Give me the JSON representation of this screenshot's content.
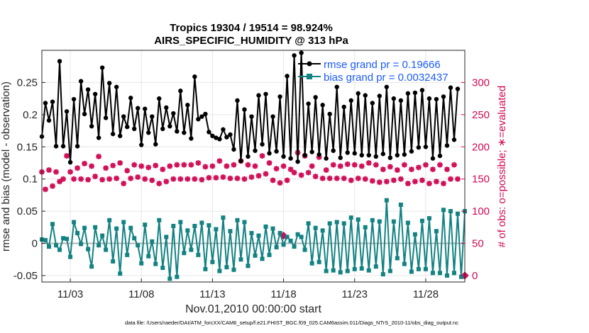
{
  "chart_data": {
    "type": "line",
    "title_line1": "Tropics 19304 / 19514 = 98.924%",
    "title_line2": "AIRS_SPECIFIC_HUMIDITY @ 313 hPa",
    "xlabel": "Nov.01,2010 00:00:00 start",
    "ylabel_left": "rmse and bias (model - observation)",
    "ylabel_right": "# of obs: o=possible; ∗=evaluated",
    "footer": "data file: /Users/raeder/DAI/ATM_forcXX/CAM6_setup/f.e21.FHIST_BGC.f09_025.CAM6assim.011/Diags_NTrS_2010-11/obs_diag_output.nc",
    "x_tick_labels": [
      "11/03",
      "11/08",
      "11/13",
      "11/18",
      "11/23",
      "11/28"
    ],
    "x_tick_values": [
      3,
      8,
      13,
      18,
      23,
      28
    ],
    "xlim": [
      1,
      30.75
    ],
    "left_ylim": [
      -0.06,
      0.3
    ],
    "left_ticks": [
      "-0.05",
      "0",
      "0.05",
      "0.1",
      "0.15",
      "0.2",
      "0.25"
    ],
    "left_tick_values": [
      -0.05,
      0,
      0.05,
      0.1,
      0.15,
      0.2,
      0.25
    ],
    "right_ylim": [
      -10,
      350
    ],
    "right_ticks": [
      "0",
      "50",
      "100",
      "150",
      "200",
      "250",
      "300"
    ],
    "right_tick_values": [
      0,
      50,
      100,
      150,
      200,
      250,
      300
    ],
    "colors": {
      "rmse": "#000000",
      "bias": "#138282",
      "obs": "#d10a55",
      "legend_text": "#1a5cff",
      "zero_line": "#b3b3b3"
    },
    "series": [
      {
        "name": "rmse grand pr = 0.19666",
        "axis": "left",
        "values": [
          0.166,
          0.218,
          0.191,
          0.22,
          0.151,
          0.283,
          0.151,
          0.205,
          0.126,
          0.224,
          0.151,
          0.252,
          0.201,
          0.239,
          0.182,
          0.232,
          0.164,
          0.273,
          0.195,
          0.249,
          0.17,
          0.243,
          0.167,
          0.197,
          0.181,
          0.226,
          0.178,
          0.21,
          0.153,
          0.209,
          0.172,
          0.197,
          0.154,
          0.225,
          0.178,
          0.211,
          0.182,
          0.202,
          0.174,
          0.237,
          0.172,
          0.215,
          0.163,
          0.259,
          0.193,
          0.197,
          0.201,
          0.173,
          0.167,
          0.164,
          0.162,
          0.177,
          0.165,
          0.169,
          0.146,
          0.222,
          0.128,
          0.208,
          0.135,
          0.197,
          0.144,
          0.23,
          0.154,
          0.232,
          0.14,
          0.197,
          0.143,
          0.228,
          0.135,
          0.26,
          0.132,
          0.292,
          0.127,
          0.296,
          0.137,
          0.217,
          0.142,
          0.227,
          0.138,
          0.215,
          0.132,
          0.201,
          0.144,
          0.243,
          0.133,
          0.212,
          0.141,
          0.222,
          0.14,
          0.233,
          0.137,
          0.23,
          0.137,
          0.218,
          0.135,
          0.229,
          0.139,
          0.243,
          0.133,
          0.225,
          0.137,
          0.222,
          0.138,
          0.233,
          0.143,
          0.234,
          0.149,
          0.238,
          0.15,
          0.225,
          0.132,
          0.224,
          0.136,
          0.228,
          0.152,
          0.242,
          0.161,
          0.24
        ]
      },
      {
        "name": "bias grand pr = 0.0032437",
        "axis": "left",
        "values": [
          0.006,
          0.005,
          -0.005,
          0.03,
          -0.003,
          -0.01,
          0.008,
          0.007,
          -0.021,
          0.033,
          0.016,
          -0.001,
          0.024,
          -0.009,
          -0.036,
          0.025,
          -0.003,
          0.012,
          -0.01,
          0.036,
          -0.028,
          0.023,
          -0.047,
          0.033,
          -0.018,
          0.024,
          0.008,
          -0.003,
          -0.031,
          0.029,
          -0.02,
          0.003,
          -0.032,
          0.036,
          -0.038,
          0.01,
          -0.055,
          0.027,
          -0.052,
          0.033,
          -0.015,
          0.02,
          -0.01,
          0.027,
          -0.018,
          0.032,
          -0.04,
          0.028,
          -0.029,
          0.022,
          -0.043,
          0.04,
          -0.037,
          0.019,
          -0.041,
          0.036,
          -0.025,
          0.033,
          -0.035,
          0.016,
          -0.019,
          0.012,
          -0.024,
          0.026,
          -0.018,
          0.023,
          -0.006,
          0.016,
          -0.002,
          0.01,
          0.004,
          -0.005,
          0.014,
          0.01,
          -0.01,
          0.031,
          -0.031,
          0.024,
          -0.029,
          0.02,
          -0.043,
          0.031,
          -0.042,
          0.033,
          -0.045,
          0.031,
          -0.043,
          0.04,
          -0.04,
          0.037,
          -0.039,
          0.025,
          -0.042,
          0.036,
          -0.036,
          0.034,
          -0.048,
          0.067,
          -0.043,
          0.034,
          -0.023,
          0.06,
          -0.032,
          0.032,
          -0.044,
          0.014,
          -0.04,
          0.035,
          -0.04,
          0.039,
          -0.046,
          0.019,
          -0.046,
          0.052,
          -0.05,
          0.05,
          -0.046,
          0.046,
          -0.052,
          0.05
        ]
      },
      {
        "name": "obs possible",
        "axis": "right",
        "values": [
          161,
          134,
          164,
          139,
          161,
          146,
          150,
          186,
          161,
          150,
          167,
          150,
          174,
          149,
          170,
          154,
          185,
          149,
          167,
          150,
          171,
          151,
          175,
          143,
          163,
          151,
          172,
          153,
          170,
          150,
          168,
          148,
          171,
          143,
          165,
          146,
          170,
          150,
          172,
          150,
          172,
          150,
          172,
          150,
          175,
          149,
          169,
          152,
          170,
          152,
          178,
          153,
          170,
          151,
          172,
          151,
          178,
          150,
          172,
          153,
          170,
          155,
          186,
          158,
          175,
          148,
          166,
          144,
          170,
          148,
          165,
          160,
          191,
          156,
          186,
          160,
          170,
          154,
          184,
          151,
          164,
          151,
          172,
          151,
          170,
          151,
          173,
          148,
          172,
          151,
          170,
          150,
          175,
          147,
          172,
          145,
          165,
          146,
          169,
          148,
          164,
          150,
          172,
          143,
          165,
          146,
          168,
          148,
          172,
          143,
          165,
          146,
          172,
          143,
          165,
          150,
          172,
          150,
          175,
          148
        ]
      },
      {
        "name": "obs evaluated",
        "axis": "right",
        "values": [
          161,
          134,
          164,
          139,
          161,
          146,
          150,
          186,
          161,
          150,
          167,
          150,
          174,
          149,
          170,
          154,
          185,
          149,
          167,
          150,
          171,
          151,
          175,
          143,
          163,
          151,
          172,
          153,
          170,
          150,
          168,
          148,
          171,
          143,
          165,
          146,
          170,
          150,
          172,
          150,
          172,
          150,
          172,
          150,
          175,
          149,
          169,
          152,
          170,
          152,
          178,
          153,
          170,
          151,
          172,
          151,
          178,
          150,
          172,
          153,
          170,
          155,
          186,
          158,
          175,
          148,
          166,
          144,
          170,
          148,
          165,
          160,
          191,
          156,
          186,
          160,
          170,
          154,
          184,
          151,
          164,
          151,
          172,
          151,
          170,
          151,
          173,
          148,
          172,
          151,
          170,
          150,
          175,
          147,
          172,
          145,
          165,
          146,
          169,
          148,
          164,
          150,
          172,
          143,
          165,
          146,
          168,
          148,
          172,
          143,
          165,
          146,
          172,
          143,
          165,
          150,
          172,
          150,
          175,
          148
        ]
      }
    ],
    "extra_evaluated_points": [
      {
        "day": 18.0,
        "value": 62
      },
      {
        "day": 30.75,
        "value": 0
      }
    ]
  }
}
